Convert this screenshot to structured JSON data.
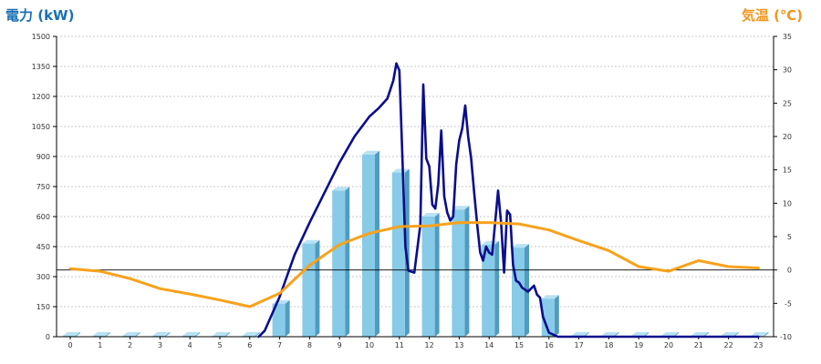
{
  "chart_data": {
    "type": "bar",
    "ylabel_left": "電力 (kW)",
    "ylabel_right": "気温 (℃)",
    "categories": [
      "0",
      "1",
      "2",
      "3",
      "4",
      "5",
      "6",
      "7",
      "8",
      "9",
      "10",
      "11",
      "12",
      "13",
      "14",
      "15",
      "16",
      "17",
      "18",
      "19",
      "20",
      "21",
      "22",
      "23"
    ],
    "ylim_left": [
      0,
      1500
    ],
    "yticks_left": [
      0,
      150,
      300,
      450,
      600,
      750,
      900,
      1050,
      1200,
      1350,
      1500
    ],
    "ylim_right": [
      -10,
      35
    ],
    "yticks_right": [
      -10,
      -5,
      0,
      5,
      10,
      15,
      20,
      25,
      30,
      35
    ],
    "grid": "horizontal-dashed",
    "series": [
      {
        "type": "bar",
        "axis": "left",
        "values": [
          5,
          5,
          5,
          5,
          5,
          5,
          5,
          165,
          465,
          730,
          910,
          820,
          600,
          635,
          460,
          445,
          190,
          5,
          5,
          5,
          5,
          5,
          5,
          5
        ]
      },
      {
        "type": "line",
        "axis": "left",
        "x": [
          6.3,
          6.5,
          7.0,
          7.5,
          8.0,
          8.5,
          9.0,
          9.5,
          10.0,
          10.3,
          10.6,
          10.8,
          10.9,
          11.0,
          11.1,
          11.2,
          11.3,
          11.5,
          11.7,
          11.8,
          11.9,
          12.0,
          12.1,
          12.2,
          12.3,
          12.4,
          12.5,
          12.6,
          12.7,
          12.8,
          12.9,
          13.0,
          13.1,
          13.2,
          13.3,
          13.4,
          13.5,
          13.6,
          13.7,
          13.8,
          13.9,
          14.0,
          14.1,
          14.2,
          14.3,
          14.4,
          14.5,
          14.6,
          14.7,
          14.8,
          14.9,
          15.0,
          15.1,
          15.2,
          15.3,
          15.4,
          15.5,
          15.6,
          15.7,
          15.8,
          16.0,
          16.3,
          16.6,
          17.0,
          17.5,
          18.0,
          19.0,
          20.0,
          21.0,
          22.0,
          23.0
        ],
        "values": [
          0,
          30,
          200,
          410,
          570,
          720,
          870,
          1000,
          1100,
          1140,
          1190,
          1280,
          1365,
          1330,
          900,
          450,
          330,
          320,
          560,
          1260,
          890,
          850,
          660,
          640,
          760,
          1030,
          700,
          620,
          580,
          600,
          860,
          980,
          1040,
          1155,
          1000,
          890,
          720,
          560,
          420,
          380,
          450,
          420,
          410,
          570,
          730,
          570,
          320,
          630,
          610,
          360,
          280,
          270,
          245,
          235,
          225,
          240,
          255,
          210,
          195,
          100,
          20,
          0,
          0,
          0,
          0,
          0,
          0,
          0,
          0,
          0,
          0
        ]
      },
      {
        "type": "line",
        "axis": "right",
        "x": [
          0,
          1,
          2,
          3,
          4,
          5,
          6,
          7,
          8,
          9,
          10,
          11,
          12,
          13,
          14,
          15,
          16,
          17,
          18,
          19,
          20,
          21,
          22,
          23
        ],
        "values": [
          0.2,
          -0.2,
          -1.3,
          -2.8,
          -3.6,
          -4.5,
          -5.5,
          -3.5,
          0.7,
          3.8,
          5.5,
          6.5,
          6.6,
          7.1,
          7.1,
          6.9,
          6.0,
          4.4,
          2.9,
          0.5,
          -0.2,
          1.4,
          0.5,
          0.3
        ]
      }
    ],
    "colors": {
      "bar_front": "#87cbe8",
      "bar_side": "#4f9cc0",
      "bar_top": "#b8e2f4",
      "power_line": "#0a0d8c",
      "temp_line": "#f7a21c",
      "grid": "#b8b8b8",
      "axis": "#000000"
    }
  }
}
